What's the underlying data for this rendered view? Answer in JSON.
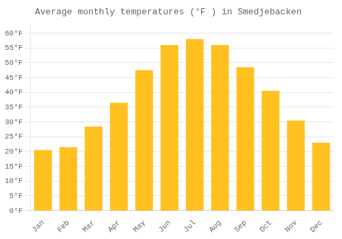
{
  "chart_data": {
    "type": "bar",
    "title": "Average monthly temperatures (°F ) in Smedjebacken",
    "categories": [
      "Jan",
      "Feb",
      "Mar",
      "Apr",
      "May",
      "Jun",
      "Jul",
      "Aug",
      "Sep",
      "Oct",
      "Nov",
      "Dec"
    ],
    "values": [
      20.5,
      21.5,
      28.5,
      36.5,
      47.5,
      56.0,
      58.0,
      56.0,
      48.5,
      40.5,
      30.5,
      23.0
    ],
    "color": "#FFC020",
    "ylim": [
      0,
      63
    ],
    "yticks": [
      {
        "value": 0,
        "label": "0°F"
      },
      {
        "value": 5,
        "label": "5°F"
      },
      {
        "value": 10,
        "label": "10°F"
      },
      {
        "value": 15,
        "label": "15°F"
      },
      {
        "value": 20,
        "label": "20°F"
      },
      {
        "value": 25,
        "label": "25°F"
      },
      {
        "value": 30,
        "label": "30°F"
      },
      {
        "value": 35,
        "label": "35°F"
      },
      {
        "value": 40,
        "label": "40°F"
      },
      {
        "value": 45,
        "label": "45°F"
      },
      {
        "value": 50,
        "label": "50°F"
      },
      {
        "value": 55,
        "label": "55°F"
      },
      {
        "value": 60,
        "label": "60°F"
      }
    ],
    "grid": true
  }
}
